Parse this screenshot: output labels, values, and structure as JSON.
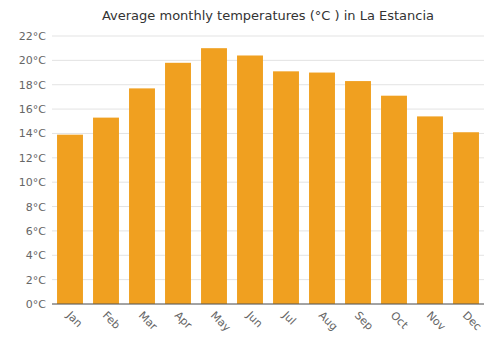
{
  "chart_data": {
    "type": "bar",
    "title": "Average monthly temperatures (°C ) in La Estancia",
    "categories": [
      "Jan",
      "Feb",
      "Mar",
      "Apr",
      "May",
      "Jun",
      "Jul",
      "Aug",
      "Sep",
      "Oct",
      "Nov",
      "Dec"
    ],
    "values": [
      13.9,
      15.3,
      17.7,
      19.8,
      21.0,
      20.4,
      19.1,
      19.0,
      18.3,
      17.1,
      15.4,
      14.1
    ],
    "color": "#F0A020",
    "ylim": [
      0,
      22
    ],
    "yticks": [
      {
        "value": 0,
        "label": "0°C"
      },
      {
        "value": 2,
        "label": "2°C"
      },
      {
        "value": 4,
        "label": "4°C"
      },
      {
        "value": 6,
        "label": "6°C"
      },
      {
        "value": 8,
        "label": "8°C"
      },
      {
        "value": 10,
        "label": "10°C"
      },
      {
        "value": 12,
        "label": "12°C"
      },
      {
        "value": 14,
        "label": "14°C"
      },
      {
        "value": 16,
        "label": "16°C"
      },
      {
        "value": 18,
        "label": "18°C"
      },
      {
        "value": 20,
        "label": "20°C"
      },
      {
        "value": 22,
        "label": "22°C"
      }
    ],
    "grid": true
  }
}
